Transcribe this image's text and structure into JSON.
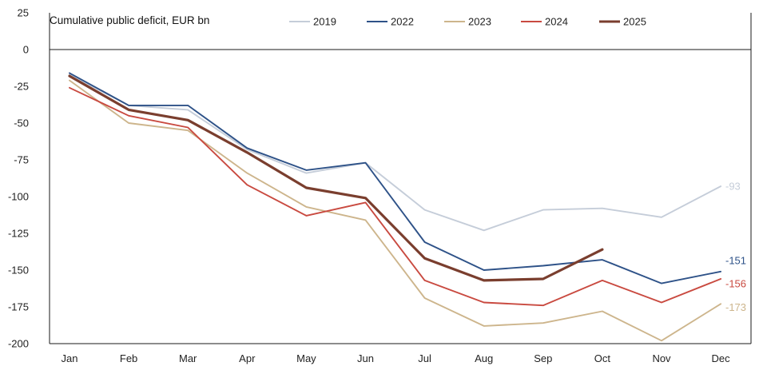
{
  "chart_data": {
    "type": "line",
    "title": "Cumulative public deficit, EUR bn",
    "xlabel": "",
    "ylabel": "",
    "categories": [
      "Jan",
      "Feb",
      "Mar",
      "Apr",
      "May",
      "Jun",
      "Jul",
      "Aug",
      "Sep",
      "Oct",
      "Nov",
      "Dec"
    ],
    "yticks": [
      25,
      0,
      -25,
      -50,
      -75,
      -100,
      -125,
      -150,
      -175,
      -200
    ],
    "ylim": [
      -200,
      25
    ],
    "grid": false,
    "legend_position": "top",
    "series": [
      {
        "name": "2019",
        "color": "#c5cdd9",
        "bold": false,
        "values": [
          -17,
          -38,
          -41,
          -68,
          -84,
          -77,
          -109,
          -123,
          -109,
          -108,
          -114,
          -93
        ],
        "end_label": "-93"
      },
      {
        "name": "2022",
        "color": "#2e5288",
        "bold": false,
        "values": [
          -16,
          -38,
          -38,
          -67,
          -82,
          -77,
          -131,
          -150,
          -147,
          -143,
          -159,
          -151
        ],
        "end_label": "-151"
      },
      {
        "name": "2023",
        "color": "#cdb58c",
        "bold": false,
        "values": [
          -21,
          -50,
          -55,
          -84,
          -107,
          -116,
          -169,
          -188,
          -186,
          -178,
          -198,
          -173
        ],
        "end_label": "-173"
      },
      {
        "name": "2024",
        "color": "#c94a40",
        "bold": false,
        "values": [
          -26,
          -45,
          -53,
          -92,
          -113,
          -104,
          -157,
          -172,
          -174,
          -157,
          -172,
          -156
        ],
        "end_label": "-156"
      },
      {
        "name": "2025",
        "color": "#7a3e2e",
        "bold": true,
        "values": [
          -18,
          -41,
          -48,
          -70,
          -94,
          -101,
          -142,
          -157,
          -156,
          -136,
          null,
          null
        ],
        "end_label": ""
      }
    ]
  }
}
